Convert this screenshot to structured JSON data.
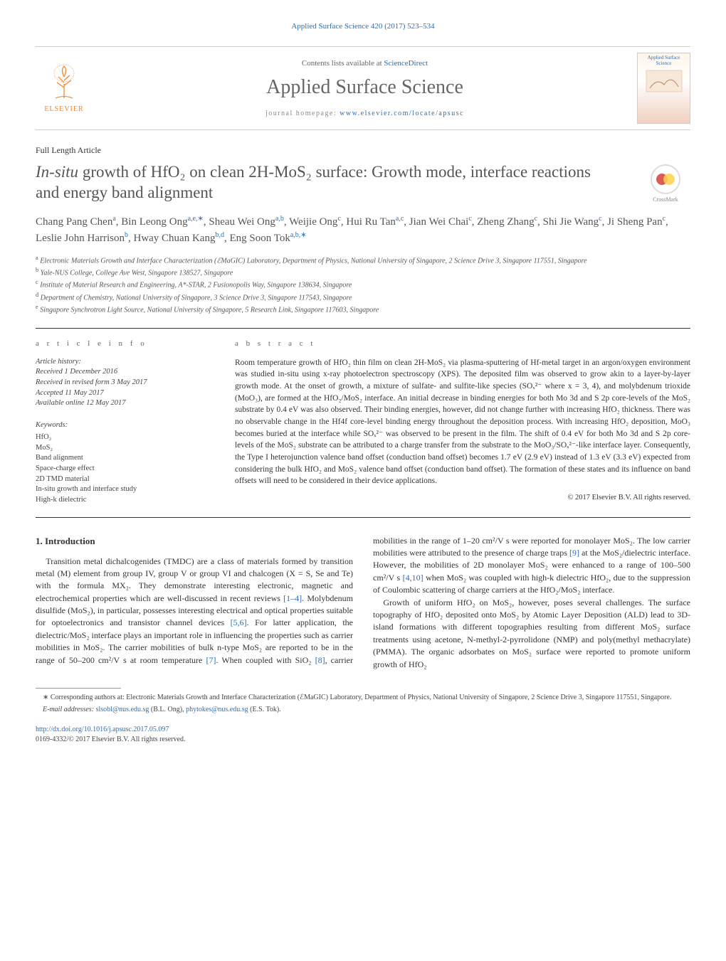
{
  "headerCitation": "Applied Surface Science 420 (2017) 523–534",
  "banner": {
    "contentsPrefix": "Contents lists available at ",
    "contentsLink": "ScienceDirect",
    "journalName": "Applied Surface Science",
    "homepagePrefix": "journal homepage: ",
    "homepageLink": "www.elsevier.com/locate/apsusc",
    "publisher": "ELSEVIER",
    "coverThumbTitle": "Applied Surface Science"
  },
  "article": {
    "type": "Full Length Article",
    "title_prefix_italic": "In-situ",
    "title_rest": " growth of HfO₂ on clean 2H-MoS₂ surface: Growth mode, interface reactions and energy band alignment",
    "crossmarkLabel": "CrossMark"
  },
  "authors": [
    {
      "name": "Chang Pang Chen",
      "sup": "a"
    },
    {
      "name": "Bin Leong Ong",
      "sup": "a,e,∗"
    },
    {
      "name": "Sheau Wei Ong",
      "sup": "a,b"
    },
    {
      "name": "Weijie Ong",
      "sup": "c"
    },
    {
      "name": "Hui Ru Tan",
      "sup": "a,c"
    },
    {
      "name": "Jian Wei Chai",
      "sup": "c"
    },
    {
      "name": "Zheng Zhang",
      "sup": "c"
    },
    {
      "name": "Shi Jie Wang",
      "sup": "c"
    },
    {
      "name": "Ji Sheng Pan",
      "sup": "c"
    },
    {
      "name": "Leslie John Harrison",
      "sup": "b"
    },
    {
      "name": "Hway Chuan Kang",
      "sup": "b,d"
    },
    {
      "name": "Eng Soon Tok",
      "sup": "a,b,∗"
    }
  ],
  "affiliations": [
    {
      "sup": "a",
      "text": "Electronic Materials Growth and Interface Characterization (ℰMaGIC) Laboratory, Department of Physics, National University of Singapore, 2 Science Drive 3, Singapore 117551, Singapore"
    },
    {
      "sup": "b",
      "text": "Yale-NUS College, College Ave West, Singapore 138527, Singapore"
    },
    {
      "sup": "c",
      "text": "Institute of Material Research and Engineering, A*-STAR, 2 Fusionopolis Way, Singapore 138634, Singapore"
    },
    {
      "sup": "d",
      "text": "Department of Chemistry, National University of Singapore, 3 Science Drive 3, Singapore 117543, Singapore"
    },
    {
      "sup": "e",
      "text": "Singapore Synchrotron Light Source, National University of Singapore, 5 Research Link, Singapore 117603, Singapore"
    }
  ],
  "info": {
    "articleInfoHead": "a r t i c l e   i n f o",
    "abstractHead": "a b s t r a c t",
    "historyLabel": "Article history:",
    "history": [
      "Received 1 December 2016",
      "Received in revised form 3 May 2017",
      "Accepted 11 May 2017",
      "Available online 12 May 2017"
    ],
    "keywordsLabel": "Keywords:",
    "keywords": [
      "HfO₂",
      "MoS₂",
      "Band alignment",
      "Space-charge effect",
      "2D TMD material",
      "In-situ growth and interface study",
      "High-k dielectric"
    ]
  },
  "abstract": "Room temperature growth of HfO₂ thin film on clean 2H-MoS₂ via plasma-sputtering of Hf-metal target in an argon/oxygen environment was studied in-situ using x-ray photoelectron spectroscopy (XPS). The deposited film was observed to grow akin to a layer-by-layer growth mode. At the onset of growth, a mixture of sulfate- and sulfite-like species (SOₓ²⁻ where x = 3, 4), and molybdenum trioxide (MoO₃), are formed at the HfO₂/MoS₂ interface. An initial decrease in binding energies for both Mo 3d and S 2p core-levels of the MoS₂ substrate by 0.4 eV was also observed. Their binding energies, however, did not change further with increasing HfO₂ thickness. There was no observable change in the Hf4f core-level binding energy throughout the deposition process. With increasing HfO₂ deposition, MoO₃ becomes buried at the interface while SOₓ²⁻ was observed to be present in the film. The shift of 0.4 eV for both Mo 3d and S 2p core-levels of the MoS₂ substrate can be attributed to a charge transfer from the substrate to the MoO₃/SOₓ²⁻-like interface layer. Consequently, the Type I heterojunction valence band offset (conduction band offset) becomes 1.7 eV (2.9 eV) instead of 1.3 eV (3.3 eV) expected from considering the bulk HfO₂ and MoS₂ valence band offset (conduction band offset). The formation of these states and its influence on band offsets will need to be considered in their device applications.",
  "copyrightLine": "© 2017 Elsevier B.V. All rights reserved.",
  "body": {
    "section1Title": "1.  Introduction",
    "para1_a": "Transition metal dichalcogenides (TMDC) are a class of materials formed by transition metal (M) element from group IV, group V or group VI and chalcogen (X = S, Se and Te) with the formula MX₂. They demonstrate interesting electronic, magnetic and electrochemical properties which are well-discussed in recent reviews ",
    "ref1": "[1–4]",
    "para1_b": ". Molybdenum disulfide (MoS₂), in particular, possesses interesting electrical and optical properties suitable for optoelectronics and transistor channel devices ",
    "ref2": "[5,6]",
    "para1_c": ". For latter application, the dielectric/MoS₂ interface plays an important role in influencing the",
    "para2_a": "properties such as carrier mobilities in MoS₂. The carrier mobilities of bulk n-type MoS₂ are reported to be in the range of 50–200 cm²/V s at room temperature ",
    "ref3": "[7]",
    "para2_b": ". When coupled with SiO₂ ",
    "ref4": "[8]",
    "para2_c": ", carrier mobilities in the range of 1–20 cm²/V s were reported for monolayer MoS₂. The low carrier mobilities were attributed to the presence of charge traps ",
    "ref5": "[9]",
    "para2_d": " at the MoS₂/dielectric interface. However, the mobilities of 2D monolayer MoS₂ were enhanced to a range of 100–500 cm²/V s ",
    "ref6": "[4,10]",
    "para2_e": " when MoS₂ was coupled with high-k dielectric HfO₂, due to the suppression of Coulombic scattering of charge carriers at the HfO₂/MoS₂ interface.",
    "para3": "Growth of uniform HfO₂ on MoS₂, however, poses several challenges. The surface topography of HfO₂ deposited onto MoS₂ by Atomic Layer Deposition (ALD) lead to 3D-island formations with different topographies resulting from different MoS₂ surface treatments using acetone, N-methyl-2-pyrrolidone (NMP) and poly(methyl methacrylate) (PMMA). The organic adsorbates on MoS₂ surface were reported to promote uniform growth of HfO₂"
  },
  "footer": {
    "corrPrefix": "∗ Corresponding authors at: Electronic Materials Growth and Interface Characterization (ℰMaGIC) Laboratory, Department of Physics, National University of Singapore, 2 Science Drive 3, Singapore 117551, Singapore.",
    "emailLabel": "E-mail addresses: ",
    "email1": "slsobl@nus.edu.sg",
    "email1Paren": " (B.L. Ong), ",
    "email2": "phytokes@nus.edu.sg",
    "email2Paren": " (E.S. Tok).",
    "doi": "http://dx.doi.org/10.1016/j.apsusc.2017.05.097",
    "issn": "0169-4332/© 2017 Elsevier B.V. All rights reserved."
  },
  "colors": {
    "link": "#2a6fb5",
    "elsevierOrange": "#f58220",
    "textGray": "#555555",
    "ruleGray": "#333333"
  }
}
